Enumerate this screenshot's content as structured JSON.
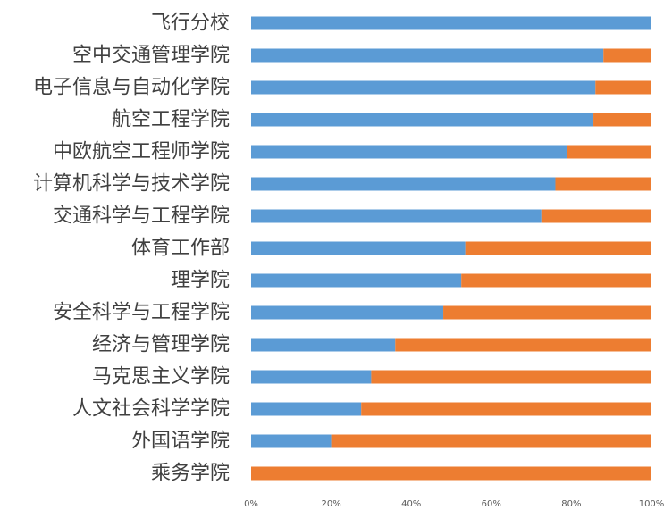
{
  "chart_data": {
    "type": "bar",
    "orientation": "horizontal",
    "stacked": "percent",
    "categories": [
      "飞行分校",
      "空中交通管理学院",
      "电子信息与自动化学院",
      "航空工程学院",
      "中欧航空工程师学院",
      "计算机科学与技术学院",
      "交通科学与工程学院",
      "体育工作部",
      "理学院",
      "安全科学与工程学院",
      "经济与管理学院",
      "马克思主义学院",
      "人文社会科学学院",
      "外国语学院",
      "乘务学院"
    ],
    "series": [
      {
        "color": "#5b9bd5",
        "values": [
          100,
          88,
          86,
          85.5,
          79,
          76,
          72.5,
          53.5,
          52.5,
          48,
          36,
          30,
          27.5,
          20,
          0
        ]
      },
      {
        "color": "#ed7d31",
        "values": [
          0,
          12,
          14,
          14.5,
          21,
          24,
          27.5,
          46.5,
          47.5,
          52,
          64,
          70,
          72.5,
          80,
          100
        ]
      }
    ],
    "xlim": [
      0,
      100
    ],
    "x_ticks": [
      "0%",
      "20%",
      "40%",
      "60%",
      "80%",
      "100%"
    ],
    "title": "",
    "xlabel": "",
    "ylabel": "",
    "grid": false,
    "legend": "none"
  }
}
